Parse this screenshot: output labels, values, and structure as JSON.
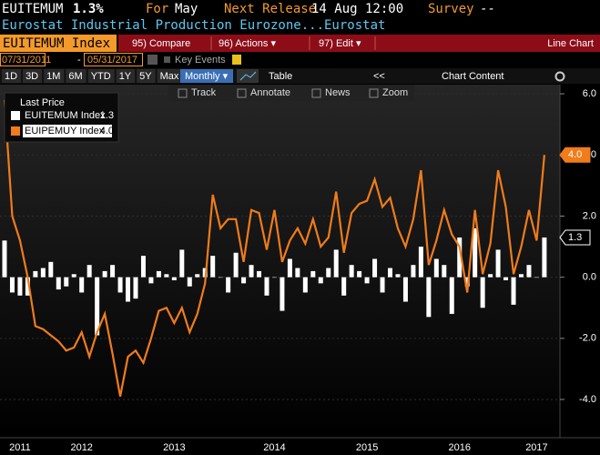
{
  "header": {
    "ticker": "EUITEMUM",
    "change": "1.3%",
    "period_label": "For",
    "period": "May",
    "release_label": "Next Release",
    "release": "14 Aug 12:00",
    "survey_label": "Survey",
    "survey": "--",
    "description": "Eurostat Industrial Production Eurozone...Eurostat"
  },
  "menu": {
    "security": "EUITEMUM Index",
    "items": [
      "95) Compare",
      "96) Actions ▾",
      "97) Edit ▾"
    ],
    "view": "Line Chart"
  },
  "range": {
    "start": "07/31/2011",
    "separator": "-",
    "end": "05/31/2017",
    "key_events": "Key Events"
  },
  "periods": [
    "1D",
    "3D",
    "1M",
    "6M",
    "YTD",
    "1Y",
    "5Y",
    "Max"
  ],
  "frequency": "Monthly ▾",
  "table": "Table",
  "collapse": "<<",
  "chart_content": "Chart Content",
  "tools": [
    "Track",
    "Annotate",
    "News",
    "Zoom"
  ],
  "chart_data": {
    "type": "combo",
    "legend_title": "Last Price",
    "categories": [
      null,
      null,
      "2011",
      null,
      null,
      null,
      null,
      null,
      null,
      null,
      "2012",
      null,
      null,
      null,
      null,
      null,
      null,
      null,
      null,
      null,
      null,
      null,
      "2013",
      null,
      null,
      null,
      null,
      null,
      null,
      null,
      null,
      null,
      null,
      null,
      null,
      "2014",
      null,
      null,
      null,
      null,
      null,
      null,
      null,
      null,
      null,
      null,
      null,
      "2015",
      null,
      null,
      null,
      null,
      null,
      null,
      null,
      null,
      null,
      null,
      null,
      "2016",
      null,
      null,
      null,
      null,
      null,
      null,
      null,
      null,
      null,
      "2017",
      null
    ],
    "series": [
      {
        "name": "EUITEMUM Index",
        "type": "bar",
        "color": "#ffffff",
        "values": [
          1.2,
          -0.5,
          -0.6,
          -0.6,
          0.2,
          0.3,
          0.5,
          -0.4,
          -0.3,
          0.1,
          -0.5,
          0.4,
          -1.9,
          0.2,
          0.4,
          -0.5,
          -0.8,
          -0.7,
          0.7,
          -0.2,
          0.2,
          0.1,
          -0.1,
          0.9,
          -0.3,
          0.1,
          0.3,
          0.7,
          0.0,
          -0.5,
          0.8,
          -0.2,
          0.4,
          0.2,
          -0.6,
          0.0,
          -1.1,
          0.6,
          0.3,
          -0.5,
          0.2,
          -0.2,
          0.3,
          0.9,
          -0.6,
          0.4,
          0.2,
          -0.2,
          0.6,
          -0.5,
          0.3,
          0.1,
          -0.8,
          0.4,
          1.0,
          -1.3,
          0.6,
          0.4,
          -1.2,
          1.3,
          -0.3,
          1.6,
          -1.0,
          0.1,
          0.9,
          -0.1,
          -0.9,
          0.1,
          0.4,
          0.0,
          1.3
        ]
      },
      {
        "name": "EUIPEMUY Index",
        "type": "line",
        "color": "#f07c1a",
        "values": [
          5.8,
          2.0,
          1.2,
          0.0,
          -1.6,
          -1.7,
          -1.9,
          -2.1,
          -2.4,
          -2.3,
          -1.8,
          -2.6,
          -1.8,
          -1.2,
          -2.5,
          -3.9,
          -2.6,
          -2.4,
          -2.8,
          -2.0,
          -1.1,
          -1.0,
          -1.5,
          -1.0,
          -1.8,
          -1.2,
          -0.2,
          2.7,
          1.6,
          1.9,
          1.9,
          0.5,
          2.2,
          2.1,
          0.9,
          2.2,
          0.5,
          1.2,
          1.6,
          1.1,
          1.9,
          1.0,
          1.3,
          2.8,
          0.8,
          2.1,
          2.4,
          2.5,
          3.2,
          2.3,
          2.6,
          1.6,
          1.0,
          1.9,
          3.5,
          0.4,
          1.2,
          2.2,
          1.4,
          1.0,
          -0.5,
          2.2,
          0.1,
          1.1,
          3.5,
          2.3,
          0.1,
          1.0,
          2.2,
          1.2,
          4.0
        ],
        "value_labels": [
          null,
          null,
          null,
          null,
          null,
          null,
          null,
          null,
          null,
          null,
          null,
          null,
          null,
          null,
          null,
          null,
          null,
          null,
          null,
          null,
          null,
          null,
          null,
          null,
          null,
          null,
          null,
          null,
          null,
          null,
          null,
          null,
          null,
          null,
          null,
          null,
          null,
          null,
          null,
          null,
          null,
          null,
          null,
          null,
          null,
          null,
          null,
          null,
          null,
          null,
          null,
          null,
          null,
          null,
          null,
          null,
          null,
          null,
          null,
          null,
          null,
          null,
          null,
          null,
          null,
          null,
          null,
          null,
          null,
          null,
          "4.0"
        ]
      }
    ],
    "ylim": [
      -5.25,
      6.3
    ],
    "yticks": [
      {
        "value": 6,
        "label": "6.0"
      },
      {
        "value": 4,
        "label": "4.0"
      },
      {
        "value": 2,
        "label": "2.0"
      },
      {
        "value": 0,
        "label": "0.0"
      },
      {
        "value": -2,
        "label": "-2.0"
      },
      {
        "value": -4,
        "label": "-4.0"
      }
    ],
    "grid": true
  }
}
